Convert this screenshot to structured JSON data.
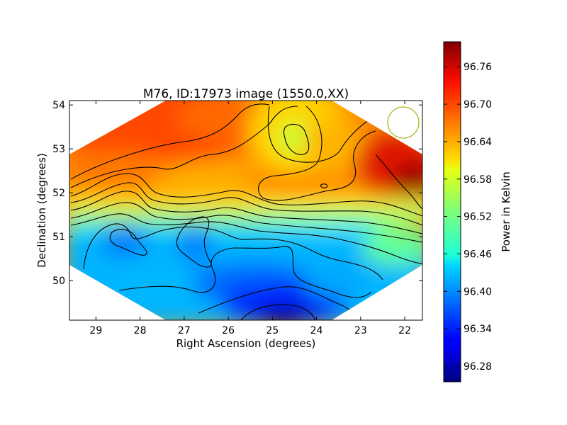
{
  "chart_data": {
    "type": "heatmap",
    "title": "M76, ID:17973 image (1550.0,XX)",
    "xlabel": "Right Ascension (degrees)",
    "ylabel": "Declination (degrees)",
    "xlim": [
      29.6,
      21.6
    ],
    "ylim": [
      49.1,
      54.1
    ],
    "x_axis_inverted": true,
    "x_ticks": [
      29,
      28,
      27,
      26,
      25,
      24,
      23,
      22
    ],
    "y_ticks": [
      50,
      51,
      52,
      53,
      54
    ],
    "grid": false,
    "colormap": "jet",
    "colorbar": {
      "label": "Power in Kelvin",
      "range": [
        96.255,
        96.8
      ],
      "ticks": [
        "96.28",
        "96.34",
        "96.40",
        "96.46",
        "96.52",
        "96.58",
        "96.64",
        "96.70",
        "96.76"
      ]
    },
    "contour_color": "#000000",
    "beam_circle": {
      "ra": 22.0,
      "dec": 53.6,
      "color": "#b5b520"
    },
    "field_region": "diamond",
    "approximate_features": [
      {
        "feature": "maximum",
        "ra": 21.8,
        "dec": 52.0,
        "value": 96.79
      },
      {
        "feature": "high",
        "ra": 27.5,
        "dec": 53.5,
        "value": 96.72
      },
      {
        "feature": "high",
        "ra": 22.4,
        "dec": 52.2,
        "value": 96.74
      },
      {
        "feature": "local low",
        "ra": 24.3,
        "dec": 53.3,
        "value": 96.56
      },
      {
        "feature": "local low",
        "ra": 28.4,
        "dec": 51.0,
        "value": 96.4
      },
      {
        "feature": "local low",
        "ra": 26.7,
        "dec": 50.9,
        "value": 96.41
      },
      {
        "feature": "minimum",
        "ra": 24.8,
        "dec": 49.2,
        "value": 96.27
      }
    ]
  }
}
